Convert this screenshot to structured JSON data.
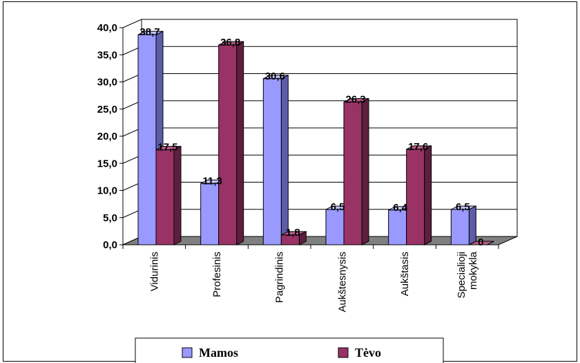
{
  "chart_data": {
    "type": "bar",
    "categories": [
      "Vidurinis",
      "Profesinis",
      "Pagrindinis",
      "Aukštesnysis",
      "Aukštasis",
      "Specialioji mokykla"
    ],
    "series": [
      {
        "name": "Mamos",
        "values": [
          38.7,
          11.3,
          30.6,
          6.5,
          6.4,
          6.5
        ],
        "labels": [
          "38,7",
          "11,3",
          "30,6",
          "6,5",
          "6,4",
          "6,5"
        ]
      },
      {
        "name": "Tėvo",
        "values": [
          17.5,
          36.8,
          1.8,
          26.3,
          17.6,
          0
        ],
        "labels": [
          "17,5",
          "36,8",
          "1,8",
          "26,3",
          "17,6",
          "0"
        ]
      }
    ],
    "y_ticks": [
      "0,0",
      "5,0",
      "10,0",
      "15,0",
      "20,0",
      "25,0",
      "30,0",
      "35,0",
      "40,0"
    ],
    "ylim": [
      0,
      40
    ],
    "grid": true,
    "three_d": true,
    "legend_position": "bottom",
    "colors": {
      "mamos_front": "#9999ff",
      "mamos_side": "#5c5ca8",
      "mamos_top": "#c4c4ff",
      "tevo_front": "#993366",
      "tevo_side": "#5e1f3f",
      "tevo_top": "#b85c8a",
      "floor": "#808080",
      "wall": "#ffffff",
      "grid": "#000000"
    }
  }
}
